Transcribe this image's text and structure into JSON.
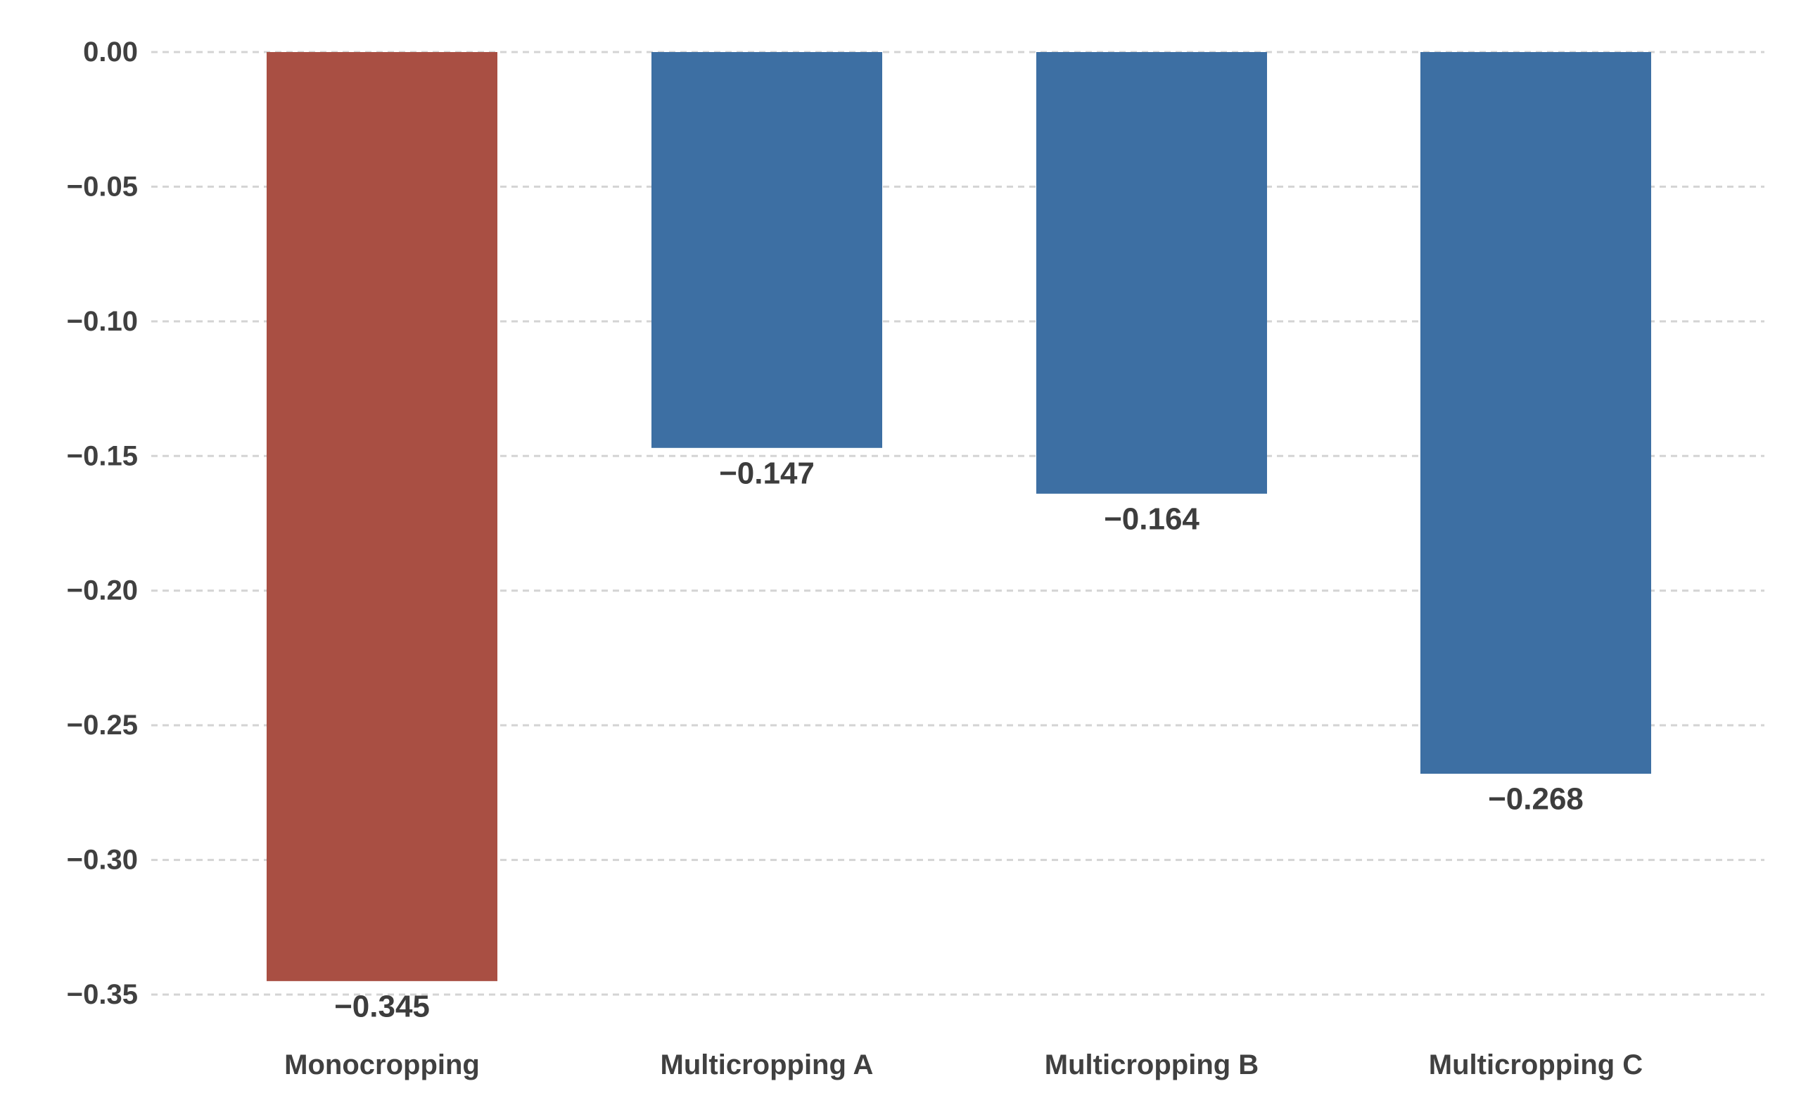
{
  "chart_data": {
    "type": "bar",
    "title": "",
    "xlabel": "",
    "ylabel": "",
    "categories": [
      "Monocropping",
      "Multicropping A",
      "Multicropping B",
      "Multicropping C"
    ],
    "values": [
      -0.345,
      -0.147,
      -0.164,
      -0.268
    ],
    "value_labels": [
      "−0.345",
      "−0.147",
      "−0.164",
      "−0.268"
    ],
    "bar_colors": [
      "#a94f43",
      "#3d6fa3",
      "#3d6fa3",
      "#3d6fa3"
    ],
    "ylim": [
      -0.35,
      0.0
    ],
    "yticks": [
      0.0,
      -0.05,
      -0.1,
      -0.15,
      -0.2,
      -0.25,
      -0.3,
      -0.35
    ],
    "ytick_labels": [
      "0.00",
      "−0.05",
      "−0.10",
      "−0.15",
      "−0.20",
      "−0.25",
      "−0.30",
      "−0.35"
    ],
    "grid": true,
    "grid_style": "dashed",
    "legend": "none"
  }
}
